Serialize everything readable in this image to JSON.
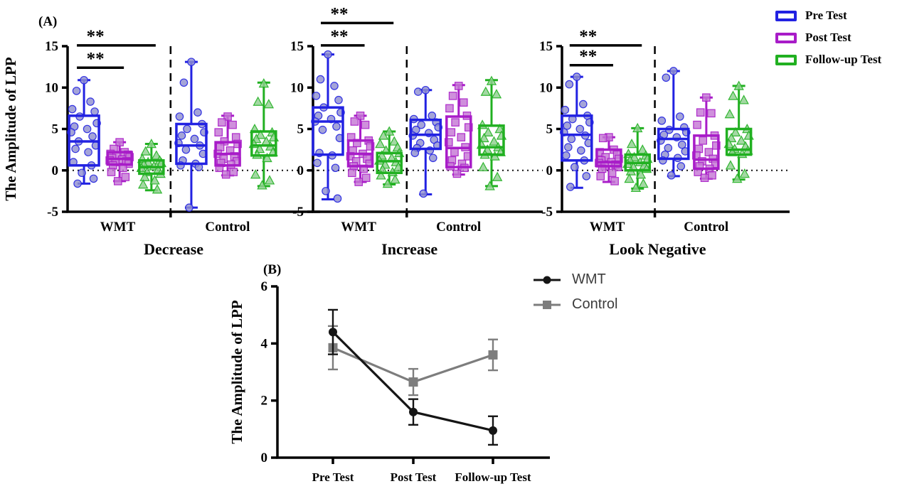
{
  "background": "#ffffff",
  "chart_data": [
    {
      "type": "box",
      "panel_label": "(A)",
      "ylabel": "The Amplitude of LPP",
      "ylim": [
        -5,
        15
      ],
      "yticks": [
        15,
        10,
        5,
        0,
        -5
      ],
      "zero_line": "dotted",
      "group_separator": "dashed-vertical",
      "legend_position": "top-right",
      "conditions": [
        "WMT",
        "Control"
      ],
      "series": [
        {
          "name": "Pre Test",
          "color": "#2222e2",
          "point_fill": "#9090cf",
          "marker": "circle"
        },
        {
          "name": "Post Test",
          "color": "#a81cc8",
          "point_fill": "#c478d4",
          "marker": "square"
        },
        {
          "name": "Follow-up Test",
          "color": "#21b021",
          "point_fill": "#8fd08f",
          "marker": "triangle"
        }
      ],
      "subplots": [
        {
          "title": "Decrease",
          "significance": [
            {
              "x1": 0,
              "x2": 1,
              "y": 12.4,
              "label": "**"
            },
            {
              "x1": 0,
              "x2": 2,
              "y": 15.1,
              "label": "**"
            }
          ],
          "boxes": [
            {
              "group": "WMT",
              "series": "Pre Test",
              "stats": {
                "lo": -1.6,
                "q1": 0.6,
                "med": 3.5,
                "q3": 6.6,
                "hi": 10.9
              },
              "points": [
                10.9,
                9.6,
                8.3,
                7.4,
                7.1,
                6.5,
                5.7,
                5.3,
                5.0,
                4.6,
                4.1,
                3.5,
                3.0,
                2.6,
                2.2,
                1.0,
                0.6,
                -0.3,
                -1.0,
                -1.6
              ]
            },
            {
              "group": "WMT",
              "series": "Post Test",
              "stats": {
                "lo": -1.3,
                "q1": 0.7,
                "med": 1.4,
                "q3": 2.2,
                "hi": 3.4
              },
              "points": [
                3.4,
                2.6,
                2.2,
                2.0,
                1.9,
                1.7,
                1.6,
                1.5,
                1.3,
                1.2,
                1.1,
                1.0,
                0.8,
                0.6,
                0.3,
                -0.2,
                -0.8,
                -1.3
              ]
            },
            {
              "group": "WMT",
              "series": "Follow-up Test",
              "stats": {
                "lo": -2.4,
                "q1": -0.4,
                "med": 0.4,
                "q3": 1.2,
                "hi": 3.2
              },
              "points": [
                3.2,
                2.3,
                1.8,
                1.4,
                1.2,
                1.0,
                0.9,
                0.7,
                0.5,
                0.3,
                0.1,
                -0.2,
                -0.4,
                -0.8,
                -1.2,
                -1.7,
                -2.3
              ]
            },
            {
              "group": "Control",
              "series": "Pre Test",
              "stats": {
                "lo": -4.5,
                "q1": 0.8,
                "med": 3.0,
                "q3": 5.6,
                "hi": 13.1
              },
              "points": [
                13.1,
                10.6,
                7.0,
                6.5,
                5.6,
                5.0,
                4.6,
                4.2,
                3.8,
                3.3,
                3.0,
                2.5,
                2.0,
                1.2,
                0.8,
                0.6,
                0.4,
                -4.5
              ]
            },
            {
              "group": "Control",
              "series": "Post Test",
              "stats": {
                "lo": -0.6,
                "q1": 0.6,
                "med": 2.0,
                "q3": 3.4,
                "hi": 6.6
              },
              "points": [
                6.5,
                5.8,
                5.5,
                4.6,
                4.0,
                3.5,
                3.2,
                2.8,
                2.4,
                2.0,
                1.7,
                1.4,
                1.1,
                0.9,
                0.7,
                0.3,
                -0.2,
                -0.5
              ]
            },
            {
              "group": "Control",
              "series": "Follow-up Test",
              "stats": {
                "lo": -1.9,
                "q1": 1.8,
                "med": 3.0,
                "q3": 4.7,
                "hi": 10.6
              },
              "points": [
                10.5,
                8.3,
                8.0,
                5.0,
                4.6,
                4.3,
                4.0,
                3.8,
                3.5,
                3.2,
                2.9,
                2.6,
                2.2,
                1.9,
                1.5,
                -0.5,
                -1.2,
                -1.8
              ]
            }
          ]
        },
        {
          "title": "Increase",
          "significance": [
            {
              "x1": 0,
              "x2": 1,
              "y": 15.1,
              "label": "**"
            },
            {
              "x1": 0,
              "x2": 2,
              "y": 17.8,
              "label": "**"
            }
          ],
          "boxes": [
            {
              "group": "WMT",
              "series": "Pre Test",
              "stats": {
                "lo": -3.5,
                "q1": 1.9,
                "med": 5.9,
                "q3": 7.6,
                "hi": 14.0
              },
              "points": [
                14.0,
                11.0,
                10.2,
                9.0,
                8.5,
                7.6,
                7.0,
                6.6,
                6.2,
                5.9,
                5.3,
                4.9,
                3.9,
                2.1,
                1.8,
                0.9,
                0.3,
                -2.5,
                -3.4
              ]
            },
            {
              "group": "WMT",
              "series": "Post Test",
              "stats": {
                "lo": -1.4,
                "q1": 0.5,
                "med": 2.0,
                "q3": 3.6,
                "hi": 6.6
              },
              "points": [
                6.6,
                5.9,
                5.5,
                4.0,
                3.6,
                3.3,
                2.9,
                2.4,
                2.0,
                1.7,
                1.4,
                1.1,
                0.8,
                0.5,
                0.2,
                -0.3,
                -0.9,
                -1.4
              ]
            },
            {
              "group": "WMT",
              "series": "Follow-up Test",
              "stats": {
                "lo": -1.7,
                "q1": -0.3,
                "med": 1.1,
                "q3": 2.1,
                "hi": 4.7
              },
              "points": [
                4.7,
                4.2,
                3.5,
                3.2,
                2.8,
                2.4,
                2.1,
                1.8,
                1.5,
                1.2,
                1.0,
                0.7,
                0.4,
                0.1,
                -0.2,
                -0.6,
                -1.1,
                -1.6
              ]
            },
            {
              "group": "Control",
              "series": "Pre Test",
              "stats": {
                "lo": -2.9,
                "q1": 2.6,
                "med": 4.3,
                "q3": 6.1,
                "hi": 9.7
              },
              "points": [
                9.7,
                9.5,
                6.6,
                6.2,
                5.8,
                5.5,
                5.2,
                4.9,
                4.5,
                4.2,
                3.7,
                3.3,
                3.0,
                2.7,
                2.4,
                2.1,
                1.5,
                -2.8
              ]
            },
            {
              "group": "Control",
              "series": "Post Test",
              "stats": {
                "lo": -0.5,
                "q1": 0.4,
                "med": 2.7,
                "q3": 6.5,
                "hi": 10.3
              },
              "points": [
                10.2,
                9.0,
                8.2,
                7.5,
                6.6,
                5.8,
                5.2,
                4.6,
                4.0,
                3.4,
                2.8,
                2.2,
                1.7,
                1.2,
                0.8,
                0.5,
                0.3,
                -0.4
              ]
            },
            {
              "group": "Control",
              "series": "Follow-up Test",
              "stats": {
                "lo": -1.9,
                "q1": 1.9,
                "med": 2.8,
                "q3": 5.4,
                "hi": 10.9
              },
              "points": [
                10.8,
                9.5,
                9.2,
                5.5,
                5.0,
                4.6,
                4.2,
                3.9,
                3.5,
                3.1,
                2.8,
                2.5,
                2.2,
                1.9,
                1.7,
                0.4,
                -0.8,
                -1.9
              ]
            }
          ]
        },
        {
          "title": "Look Negative",
          "significance": [
            {
              "x1": 0,
              "x2": 1,
              "y": 12.7,
              "label": "**"
            },
            {
              "x1": 0,
              "x2": 2,
              "y": 15.1,
              "label": "**"
            }
          ],
          "boxes": [
            {
              "group": "WMT",
              "series": "Pre Test",
              "stats": {
                "lo": -2.1,
                "q1": 1.2,
                "med": 4.3,
                "q3": 6.6,
                "hi": 11.3
              },
              "points": [
                11.3,
                10.4,
                8.0,
                7.3,
                6.6,
                6.2,
                5.8,
                5.4,
                5.0,
                4.6,
                4.2,
                3.8,
                3.3,
                2.8,
                2.4,
                1.8,
                1.2,
                0.4,
                -0.7,
                -2.0
              ]
            },
            {
              "group": "WMT",
              "series": "Post Test",
              "stats": {
                "lo": -1.4,
                "q1": 0.5,
                "med": 1.0,
                "q3": 2.5,
                "hi": 4.0
              },
              "points": [
                4.0,
                3.9,
                2.5,
                2.2,
                1.9,
                1.6,
                1.4,
                1.2,
                1.0,
                0.9,
                0.7,
                0.5,
                0.4,
                0.2,
                -0.3,
                -0.7,
                -1.3
              ]
            },
            {
              "group": "WMT",
              "series": "Follow-up Test",
              "stats": {
                "lo": -2.2,
                "q1": 0.0,
                "med": 0.9,
                "q3": 1.9,
                "hi": 5.1
              },
              "points": [
                5.1,
                3.2,
                2.5,
                2.0,
                1.8,
                1.6,
                1.4,
                1.2,
                1.0,
                0.8,
                0.6,
                0.4,
                0.2,
                -0.1,
                -0.5,
                -1.0,
                -1.6,
                -2.1
              ]
            },
            {
              "group": "Control",
              "series": "Pre Test",
              "stats": {
                "lo": -0.7,
                "q1": 1.4,
                "med": 3.8,
                "q3": 5.0,
                "hi": 12.0
              },
              "points": [
                12.0,
                11.2,
                6.5,
                6.0,
                5.2,
                4.9,
                4.6,
                4.3,
                4.0,
                3.6,
                3.1,
                2.7,
                2.3,
                1.9,
                1.5,
                1.2,
                0.5,
                -0.6
              ]
            },
            {
              "group": "Control",
              "series": "Post Test",
              "stats": {
                "lo": -1.0,
                "q1": 0.2,
                "med": 1.3,
                "q3": 4.2,
                "hi": 8.8
              },
              "points": [
                8.8,
                7.0,
                6.9,
                5.5,
                4.2,
                3.6,
                3.0,
                2.6,
                2.2,
                1.8,
                1.4,
                1.1,
                0.8,
                0.5,
                0.2,
                -0.2,
                -0.6,
                -0.9
              ]
            },
            {
              "group": "Control",
              "series": "Follow-up Test",
              "stats": {
                "lo": -1.1,
                "q1": 1.9,
                "med": 2.5,
                "q3": 5.0,
                "hi": 10.2
              },
              "points": [
                10.2,
                9.0,
                8.5,
                6.8,
                5.0,
                4.6,
                4.2,
                3.9,
                3.6,
                3.2,
                2.9,
                2.6,
                2.4,
                2.2,
                2.0,
                0.6,
                -0.4,
                -1.0
              ]
            }
          ]
        }
      ]
    },
    {
      "type": "line",
      "panel_label": "(B)",
      "ylabel": "The Amplitude of LPP",
      "ylim": [
        0,
        6
      ],
      "yticks": [
        0,
        2,
        4,
        6
      ],
      "categories": [
        "Pre Test",
        "Post Test",
        "Follow-up Test"
      ],
      "legend_position": "right",
      "series": [
        {
          "name": "WMT",
          "color": "#151515",
          "marker": "circle",
          "values": [
            4.4,
            1.6,
            0.95
          ],
          "errors": [
            0.78,
            0.45,
            0.5
          ]
        },
        {
          "name": "Control",
          "color": "#7d7d7d",
          "marker": "square",
          "values": [
            3.85,
            2.65,
            3.6
          ],
          "errors": [
            0.76,
            0.46,
            0.54
          ]
        }
      ]
    }
  ]
}
